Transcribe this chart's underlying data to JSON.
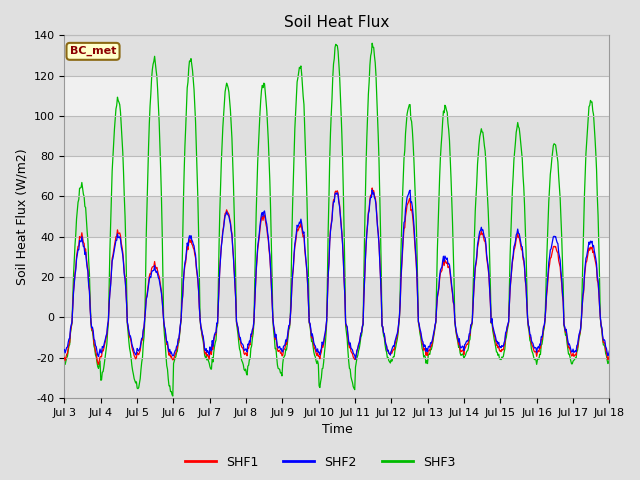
{
  "title": "Soil Heat Flux",
  "ylabel": "Soil Heat Flux (W/m2)",
  "xlabel": "Time",
  "ylim": [
    -40,
    140
  ],
  "xlim": [
    0,
    15
  ],
  "xtick_labels": [
    "Jul 3",
    "Jul 4",
    "Jul 5",
    "Jul 6",
    "Jul 7",
    "Jul 8",
    "Jul 9",
    "Jul 10",
    "Jul 11",
    "Jul 12",
    "Jul 13",
    "Jul 14",
    "Jul 15",
    "Jul 16",
    "Jul 17",
    "Jul 18"
  ],
  "xtick_positions": [
    0,
    1,
    2,
    3,
    4,
    5,
    6,
    7,
    8,
    9,
    10,
    11,
    12,
    13,
    14,
    15
  ],
  "ytick_labels": [
    "-40",
    "-20",
    "0",
    "20",
    "40",
    "60",
    "80",
    "100",
    "120",
    "140"
  ],
  "ytick_positions": [
    -40,
    -20,
    0,
    20,
    40,
    60,
    80,
    100,
    120,
    140
  ],
  "shf1_color": "#ff0000",
  "shf2_color": "#0000ff",
  "shf3_color": "#00bb00",
  "legend_label_shf1": "SHF1",
  "legend_label_shf2": "SHF2",
  "legend_label_shf3": "SHF3",
  "bc_met_text": "BC_met",
  "background_outer": "#e0e0e0",
  "background_inner": "#ffffff",
  "band_color_dark": "#e0e0e0",
  "band_color_light": "#f0f0f0",
  "line_width": 0.9,
  "title_fontsize": 11,
  "axis_fontsize": 9,
  "tick_fontsize": 8,
  "figwidth": 6.4,
  "figheight": 4.8,
  "dpi": 100
}
